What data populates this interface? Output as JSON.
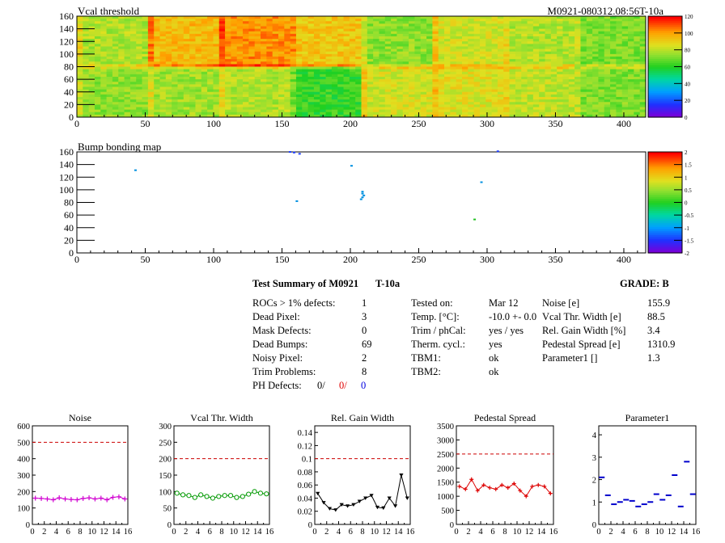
{
  "maps": {
    "vcal": {
      "title": "Vcal threshold",
      "label": "M0921-080312.08:56T-10a",
      "xticks": [
        "0",
        "50",
        "100",
        "150",
        "200",
        "250",
        "300",
        "350",
        "400"
      ],
      "yticks": [
        "0",
        "20",
        "40",
        "60",
        "80",
        "100",
        "120",
        "140",
        "160"
      ],
      "zticks": [
        "0",
        "20",
        "40",
        "60",
        "80",
        "100",
        "120"
      ],
      "zmax": 130
    },
    "bump": {
      "title": "Bump bonding map",
      "xticks": [
        "0",
        "50",
        "100",
        "150",
        "200",
        "250",
        "300",
        "350",
        "400"
      ],
      "yticks": [
        "0",
        "20",
        "40",
        "60",
        "80",
        "100",
        "120",
        "140",
        "160"
      ],
      "zticks": [
        "-2",
        "-1.5",
        "-1",
        "-0.5",
        "0",
        "0.5",
        "1",
        "1.5",
        "2"
      ],
      "hits": [
        [
          155,
          160
        ],
        [
          158,
          159
        ],
        [
          162,
          157
        ],
        [
          200,
          138
        ],
        [
          208,
          97
        ],
        [
          208,
          94
        ],
        [
          209,
          91
        ],
        [
          208,
          88
        ],
        [
          207,
          85
        ],
        [
          160,
          82
        ],
        [
          42,
          131
        ],
        [
          290,
          53
        ],
        [
          295,
          112
        ],
        [
          307,
          161
        ]
      ]
    }
  },
  "summary": {
    "title": "Test Summary of M0921",
    "temp_tag": "T-10a",
    "grade": "GRADE:  B",
    "rows1": [
      {
        "label": "ROCs > 1% defects:",
        "value": "1"
      },
      {
        "label": "Dead Pixel:",
        "value": "3"
      },
      {
        "label": "Mask Defects:",
        "value": "0"
      },
      {
        "label": "Dead Bumps:",
        "value": "69"
      },
      {
        "label": "Noisy Pixel:",
        "value": "2"
      },
      {
        "label": "Trim Problems:",
        "value": "8"
      }
    ],
    "ph": {
      "label": "PH Defects:",
      "v1": "0/",
      "v2": "0/",
      "v3": "0"
    },
    "rows2": [
      {
        "label": "Tested on:",
        "value": "Mar 12"
      },
      {
        "label": "Temp. [°C]:",
        "value": "-10.0 +- 0.0"
      },
      {
        "label": "Trim / phCal:",
        "value": "yes / yes"
      },
      {
        "label": "Therm. cycl.:",
        "value": "yes"
      },
      {
        "label": "TBM1:",
        "value": "ok"
      },
      {
        "label": "TBM2:",
        "value": "ok"
      }
    ],
    "rows3": [
      {
        "label": "Noise [e]",
        "value": "155.9"
      },
      {
        "label": "Vcal Thr. Width [e]",
        "value": "88.5"
      },
      {
        "label": "Rel. Gain Width [%]",
        "value": "3.4"
      },
      {
        "label": "Pedestal Spread [e]",
        "value": "1310.9"
      },
      {
        "label": "Parameter1 []",
        "value": "1.3"
      }
    ]
  },
  "chart_data": [
    {
      "type": "line",
      "title": "Noise",
      "x": [
        0,
        1,
        2,
        3,
        4,
        5,
        6,
        7,
        8,
        9,
        10,
        11,
        12,
        13,
        14,
        15
      ],
      "values": [
        160,
        158,
        155,
        150,
        162,
        155,
        152,
        150,
        158,
        162,
        155,
        160,
        150,
        165,
        168,
        155
      ],
      "ylim": [
        0,
        600
      ],
      "yticks": [
        "0",
        "100",
        "200",
        "300",
        "400",
        "500",
        "600"
      ],
      "threshold": 500,
      "color": "#d000d0",
      "marker": "plus"
    },
    {
      "type": "line",
      "title": "Vcal Thr. Width",
      "x": [
        0,
        1,
        2,
        3,
        4,
        5,
        6,
        7,
        8,
        9,
        10,
        11,
        12,
        13,
        14,
        15
      ],
      "values": [
        95,
        90,
        88,
        82,
        90,
        85,
        80,
        85,
        88,
        88,
        82,
        85,
        92,
        100,
        95,
        93
      ],
      "ylim": [
        0,
        300
      ],
      "yticks": [
        "0",
        "50",
        "100",
        "150",
        "200",
        "250",
        "300"
      ],
      "threshold": 200,
      "color": "#009900",
      "marker": "circle"
    },
    {
      "type": "line",
      "title": "Rel. Gain Width",
      "x": [
        0,
        1,
        2,
        3,
        4,
        5,
        6,
        7,
        8,
        9,
        10,
        11,
        12,
        13,
        14,
        15
      ],
      "values": [
        0.047,
        0.033,
        0.024,
        0.022,
        0.03,
        0.028,
        0.03,
        0.035,
        0.04,
        0.044,
        0.026,
        0.025,
        0.04,
        0.028,
        0.075,
        0.04
      ],
      "ylim": [
        0,
        0.15
      ],
      "yticks": [
        "0",
        "0.02",
        "0.04",
        "0.06",
        "0.08",
        "0.1",
        "0.12",
        "0.14"
      ],
      "threshold": 0.1,
      "color": "#000000",
      "marker": "triangle"
    },
    {
      "type": "line",
      "title": "Pedestal Spread",
      "x": [
        0,
        1,
        2,
        3,
        4,
        5,
        6,
        7,
        8,
        9,
        10,
        11,
        12,
        13,
        14,
        15
      ],
      "values": [
        1350,
        1250,
        1600,
        1200,
        1400,
        1300,
        1250,
        1400,
        1300,
        1450,
        1200,
        1000,
        1350,
        1400,
        1350,
        1100
      ],
      "ylim": [
        0,
        3500
      ],
      "yticks": [
        "0",
        "500",
        "1000",
        "1500",
        "2000",
        "2500",
        "3000",
        "3500"
      ],
      "threshold": 2500,
      "color": "#dd0000",
      "marker": "star"
    },
    {
      "type": "scatter",
      "title": "Parameter1",
      "x": [
        0,
        1,
        2,
        3,
        4,
        5,
        6,
        7,
        8,
        9,
        10,
        11,
        12,
        13,
        14,
        15
      ],
      "values": [
        2.1,
        1.3,
        0.9,
        1.0,
        1.1,
        1.05,
        0.8,
        0.9,
        1.0,
        1.35,
        1.1,
        1.3,
        2.2,
        0.8,
        2.8,
        1.35
      ],
      "ylim": [
        0,
        4.4
      ],
      "yticks": [
        "0",
        "1",
        "2",
        "3",
        "4"
      ],
      "color": "#0000cc",
      "marker": "hbar"
    }
  ],
  "axis_x_ticks": [
    "0",
    "2",
    "4",
    "6",
    "8",
    "10",
    "12",
    "14",
    "16"
  ]
}
